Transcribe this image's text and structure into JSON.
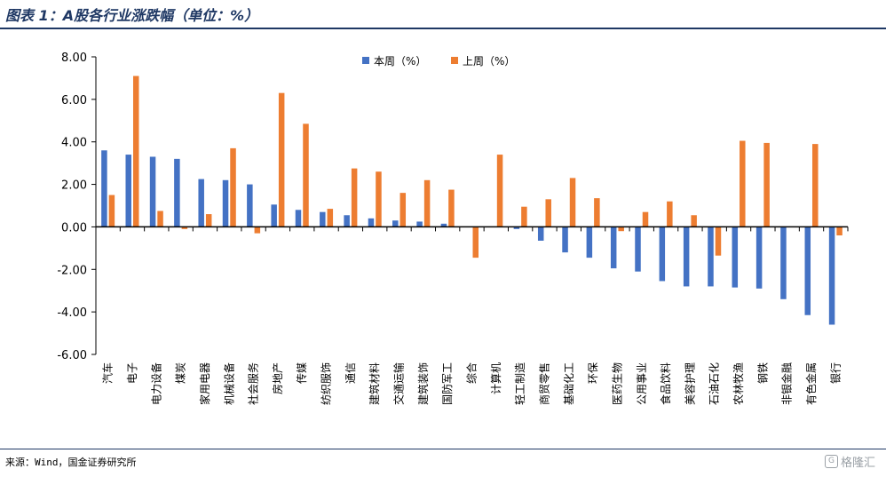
{
  "title": "图表 1：A股各行业涨跌幅（单位：%）",
  "source": "来源：Wind，国金证券研究所",
  "watermark": "格隆汇",
  "colors": {
    "series1": "#4472c4",
    "series2": "#ed7d31",
    "accent": "#1f3864"
  },
  "chart_data": {
    "type": "bar",
    "categories": [
      "汽车",
      "电子",
      "电力设备",
      "煤炭",
      "家用电器",
      "机械设备",
      "社会服务",
      "房地产",
      "传媒",
      "纺织服饰",
      "通信",
      "建筑材料",
      "交通运输",
      "建筑装饰",
      "国防军工",
      "综合",
      "计算机",
      "轻工制造",
      "商贸零售",
      "基础化工",
      "环保",
      "医药生物",
      "公用事业",
      "食品饮料",
      "美容护理",
      "石油石化",
      "农林牧渔",
      "钢铁",
      "非银金融",
      "有色金属",
      "银行"
    ],
    "series": [
      {
        "name": "本周（%）",
        "values": [
          3.6,
          3.4,
          3.3,
          3.2,
          2.25,
          2.2,
          2.0,
          1.05,
          0.8,
          0.7,
          0.55,
          0.4,
          0.3,
          0.25,
          0.15,
          0.0,
          0.0,
          -0.1,
          -0.65,
          -1.2,
          -1.45,
          -1.95,
          -2.1,
          -2.55,
          -2.8,
          -2.8,
          -2.85,
          -2.9,
          -3.4,
          -4.15,
          -4.6
        ]
      },
      {
        "name": "上周（%）",
        "values": [
          1.5,
          7.1,
          0.75,
          -0.1,
          0.6,
          3.7,
          -0.3,
          6.3,
          4.85,
          0.85,
          2.75,
          2.6,
          1.6,
          2.2,
          1.75,
          -1.45,
          3.4,
          0.95,
          1.3,
          2.3,
          1.35,
          -0.2,
          0.7,
          1.2,
          0.55,
          -1.35,
          4.05,
          3.95,
          0.0,
          3.9,
          -0.4
        ]
      }
    ],
    "yticks": [
      "8.00",
      "6.00",
      "4.00",
      "2.00",
      "0.00",
      "-2.00",
      "-4.00",
      "-6.00"
    ],
    "ylim": [
      -6,
      8
    ],
    "legend_position": "top-center",
    "grid": false
  }
}
